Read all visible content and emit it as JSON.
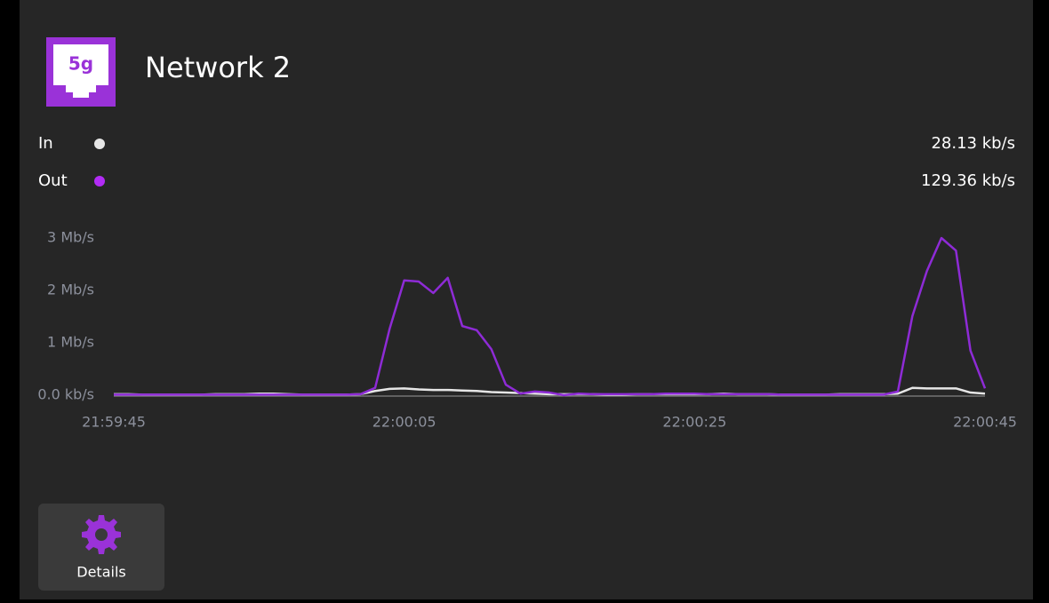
{
  "header": {
    "icon_label": "5g",
    "title": "Network 2"
  },
  "chart_data": {
    "type": "line",
    "x": [
      "21:59:45",
      "21:59:46",
      "21:59:47",
      "21:59:48",
      "21:59:49",
      "21:59:50",
      "21:59:51",
      "21:59:52",
      "21:59:53",
      "21:59:54",
      "21:59:55",
      "21:59:56",
      "21:59:57",
      "21:59:58",
      "21:59:59",
      "22:00:00",
      "22:00:01",
      "22:00:02",
      "22:00:03",
      "22:00:04",
      "22:00:05",
      "22:00:06",
      "22:00:07",
      "22:00:08",
      "22:00:09",
      "22:00:10",
      "22:00:11",
      "22:00:12",
      "22:00:13",
      "22:00:14",
      "22:00:15",
      "22:00:16",
      "22:00:17",
      "22:00:18",
      "22:00:19",
      "22:00:20",
      "22:00:21",
      "22:00:22",
      "22:00:23",
      "22:00:24",
      "22:00:25",
      "22:00:26",
      "22:00:27",
      "22:00:28",
      "22:00:29",
      "22:00:30",
      "22:00:31",
      "22:00:32",
      "22:00:33",
      "22:00:34",
      "22:00:35",
      "22:00:36",
      "22:00:37",
      "22:00:38",
      "22:00:39",
      "22:00:40",
      "22:00:41",
      "22:00:42",
      "22:00:43",
      "22:00:44",
      "22:00:45"
    ],
    "series": [
      {
        "name": "In",
        "color": "#e6e6e6",
        "current": "28.13 kb/s",
        "values": [
          0.02,
          0.02,
          0.01,
          0.01,
          0.01,
          0.01,
          0.01,
          0.02,
          0.02,
          0.02,
          0.03,
          0.03,
          0.02,
          0.01,
          0.01,
          0.01,
          0.01,
          0.02,
          0.08,
          0.12,
          0.13,
          0.11,
          0.1,
          0.1,
          0.09,
          0.08,
          0.06,
          0.05,
          0.04,
          0.03,
          0.02,
          0.02,
          0.02,
          0.02,
          0.01,
          0.01,
          0.02,
          0.02,
          0.02,
          0.02,
          0.02,
          0.02,
          0.03,
          0.02,
          0.02,
          0.02,
          0.01,
          0.01,
          0.01,
          0.01,
          0.02,
          0.02,
          0.02,
          0.02,
          0.03,
          0.14,
          0.13,
          0.13,
          0.13,
          0.05,
          0.03
        ]
      },
      {
        "name": "Out",
        "color": "#8e2bd6",
        "dot_color": "#b22cf5",
        "current": "129.36 kb/s",
        "values": [
          0.01,
          0.01,
          0.01,
          0.01,
          0.01,
          0.01,
          0.01,
          0.01,
          0.01,
          0.01,
          0.01,
          0.01,
          0.01,
          0.01,
          0.01,
          0.01,
          0.01,
          0.02,
          0.14,
          1.27,
          2.19,
          2.17,
          1.95,
          2.24,
          1.32,
          1.24,
          0.88,
          0.2,
          0.03,
          0.07,
          0.05,
          0,
          0.03,
          0.02,
          0.02,
          0.02,
          0.02,
          0.02,
          0.03,
          0.03,
          0.03,
          0.02,
          0.02,
          0.02,
          0.02,
          0.02,
          0.01,
          0.01,
          0.01,
          0.01,
          0.01,
          0.01,
          0.01,
          0.01,
          0.07,
          1.51,
          2.37,
          3.0,
          2.76,
          0.85,
          0.13
        ]
      }
    ],
    "ylim": [
      0,
      3
    ],
    "yticks": [
      {
        "value": 0,
        "label": "0.0 kb/s"
      },
      {
        "value": 1,
        "label": "1 Mb/s"
      },
      {
        "value": 2,
        "label": "2 Mb/s"
      },
      {
        "value": 3,
        "label": "3 Mb/s"
      }
    ],
    "xticks": [
      "21:59:45",
      "22:00:05",
      "22:00:25",
      "22:00:45"
    ]
  },
  "button": {
    "label": "Details"
  }
}
